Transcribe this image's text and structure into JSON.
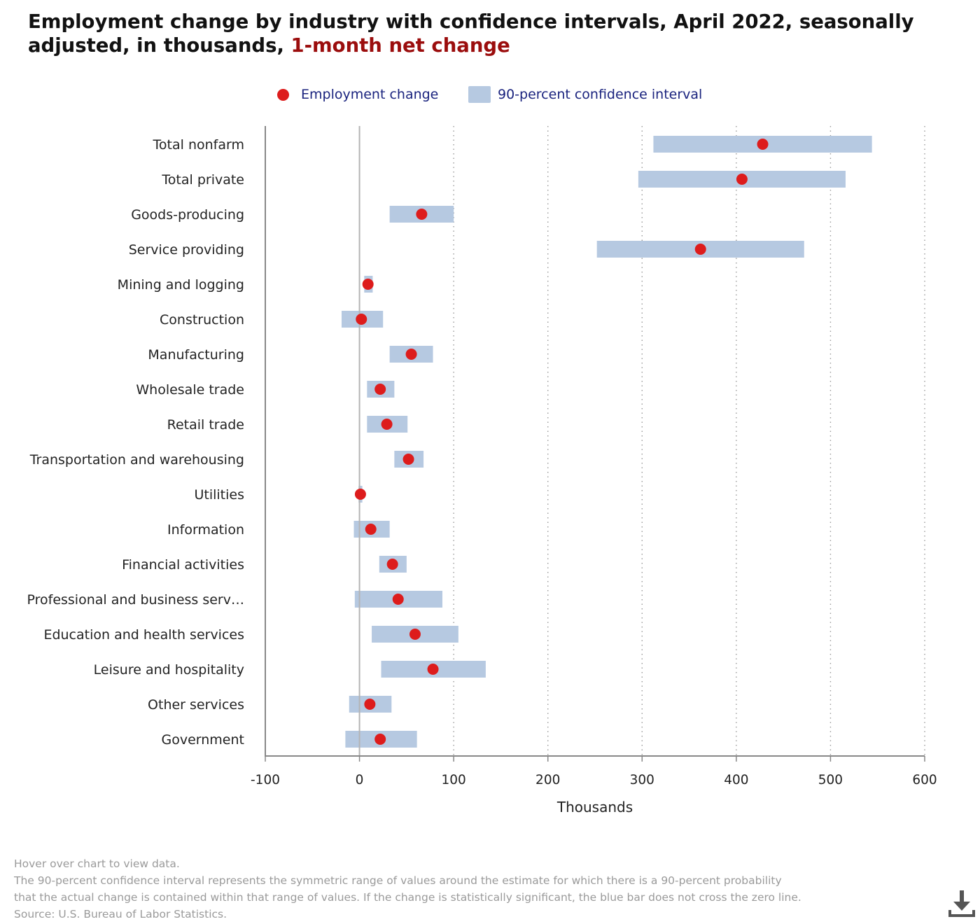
{
  "title": {
    "main": "Employment change by industry with confidence intervals, April 2022, seasonally adjusted, in thousands,",
    "highlight": "1-month net change"
  },
  "legend": {
    "items": [
      {
        "label": "Employment change"
      },
      {
        "label": "90-percent confidence interval"
      }
    ]
  },
  "colors": {
    "dot": "#dd1c1c",
    "interval": "#b6c9e1",
    "title_accent": "#9b0d0d",
    "legend_text": "#1a237e",
    "footer_text": "#9a9a9a"
  },
  "chart_data": {
    "type": "scatter",
    "title": "Employment change by industry with confidence intervals, April 2022, seasonally adjusted, in thousands, 1-month net change",
    "xlabel": "Thousands",
    "ylabel": "",
    "xlim": [
      -100,
      600
    ],
    "xticks": [
      -100,
      0,
      100,
      200,
      300,
      400,
      500,
      600
    ],
    "xtick_labels": [
      "-100",
      "0",
      "100",
      "200",
      "300",
      "400",
      "500",
      "600"
    ],
    "grid": "vertical dotted",
    "legend_position": "top-center",
    "series": [
      {
        "name": "Employment change"
      },
      {
        "name": "90-percent confidence interval"
      }
    ],
    "categories": [
      "Total nonfarm",
      "Total private",
      "Goods-producing",
      "Service providing",
      "Mining and logging",
      "Construction",
      "Manufacturing",
      "Wholesale trade",
      "Retail trade",
      "Transportation and warehousing",
      "Utilities",
      "Information",
      "Financial activities",
      "Professional and business serv…",
      "Education and health services",
      "Leisure and hospitality",
      "Other services",
      "Government"
    ],
    "values": [
      428,
      406,
      66,
      362,
      9,
      2,
      55,
      22,
      29,
      52,
      1,
      12,
      35,
      41,
      59,
      78,
      11,
      22
    ],
    "ci_low": [
      312,
      296,
      32,
      252,
      5,
      -19,
      32,
      8,
      8,
      37,
      -1,
      -6,
      21,
      -5,
      13,
      23,
      -11,
      -15
    ],
    "ci_high": [
      544,
      516,
      100,
      472,
      14,
      25,
      78,
      37,
      51,
      68,
      3,
      32,
      50,
      88,
      105,
      134,
      34,
      61
    ]
  },
  "footer": {
    "hover_note": "Hover over chart to view data.",
    "note_line1": "The 90-percent confidence interval represents the symmetric range of values around the estimate for which there is a 90-percent probability",
    "note_line2": "that the actual change is contained within that range of values. If the change is statistically significant, the blue bar does not cross the zero line.",
    "source": "Source: U.S. Bureau of Labor Statistics."
  },
  "download": {
    "icon": "download-icon"
  }
}
